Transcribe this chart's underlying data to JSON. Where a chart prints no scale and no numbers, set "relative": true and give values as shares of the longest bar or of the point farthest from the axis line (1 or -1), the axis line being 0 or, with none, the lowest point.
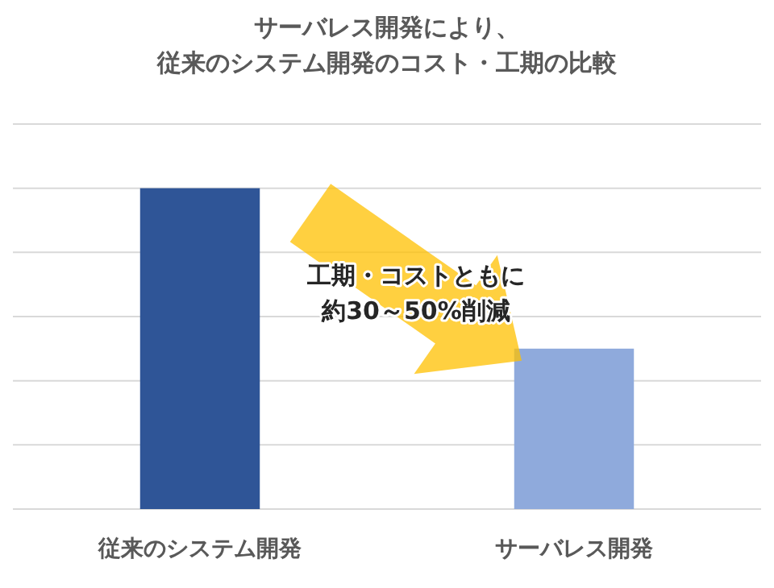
{
  "chart_data": {
    "type": "bar",
    "title": "サーバレス開発により、",
    "subtitle": "従来のシステム開発のコスト・工期の比較",
    "categories": [
      "従来のシステム開発",
      "サーバレス開発"
    ],
    "values": [
      1,
      0.5
    ],
    "colors": [
      "#2f5597",
      "#8faadc"
    ],
    "relative": true,
    "grid": "y",
    "annotations": [
      "工期・コストともに",
      "約30～50%削減"
    ]
  }
}
